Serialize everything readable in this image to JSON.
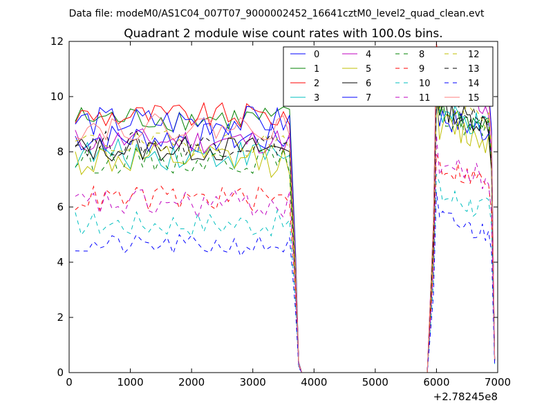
{
  "chart_data": {
    "type": "line",
    "suptitle": "Data file: modeM0/AS1C04_007T07_9000002452_16641cztM0_level2_quad_clean.evt",
    "title": "Quadrant 2 module wise count rates with 100.0s bins.",
    "xlabel": "",
    "ylabel": "",
    "x_offset_label": "+2.78245e8",
    "xlim": [
      0,
      7000
    ],
    "ylim": [
      0,
      12
    ],
    "x_ticks": [
      0,
      1000,
      2000,
      3000,
      4000,
      5000,
      6000,
      7000
    ],
    "y_ticks": [
      0,
      2,
      4,
      6,
      8,
      10,
      12
    ],
    "x_tick_labels": [
      "0",
      "1000",
      "2000",
      "3000",
      "4000",
      "5000",
      "6000",
      "7000"
    ],
    "y_tick_labels": [
      "0",
      "2",
      "4",
      "6",
      "8",
      "10",
      "12"
    ],
    "legend_position": "upper-right",
    "legend_columns": 4,
    "segments": {
      "seg1": {
        "start": 100,
        "end": 3650,
        "step": 100
      },
      "drop": [
        {
          "x": 3700,
          "factor": 0.45
        },
        {
          "x": 3750,
          "factor": 0.04
        },
        {
          "x": 3800,
          "factor": 0.0
        }
      ],
      "zero_range": [
        3800,
        5850
      ],
      "rise": [
        {
          "x": 5850,
          "factor": 0.0
        },
        {
          "x": 5950,
          "factor": 0.5
        }
      ],
      "seg2": {
        "start": 6000,
        "end": 6850,
        "step": 50
      },
      "end_fall": [
        {
          "x": 6900,
          "factor": 0.85
        },
        {
          "x": 6950,
          "factor": 0.05
        }
      ]
    },
    "series": [
      {
        "name": "0",
        "color": "#0000ff",
        "dash": "solid",
        "level1": 8.5,
        "amp1": 0.35,
        "level2": 9.3,
        "amp2": 0.35
      },
      {
        "name": "1",
        "color": "#008000",
        "dash": "solid",
        "level1": 9.2,
        "amp1": 0.3,
        "level2": 9.5,
        "amp2": 0.3
      },
      {
        "name": "2",
        "color": "#ff0000",
        "dash": "solid",
        "level1": 9.3,
        "amp1": 0.3,
        "level2": 10.8,
        "amp2": 0.4
      },
      {
        "name": "3",
        "color": "#00bfbf",
        "dash": "solid",
        "level1": 7.9,
        "amp1": 0.35,
        "level2": 9.4,
        "amp2": 0.35
      },
      {
        "name": "4",
        "color": "#bf00bf",
        "dash": "solid",
        "level1": 8.4,
        "amp1": 0.3,
        "level2": 10.2,
        "amp2": 0.35
      },
      {
        "name": "5",
        "color": "#bfbf00",
        "dash": "solid",
        "level1": 7.7,
        "amp1": 0.4,
        "level2": 9.0,
        "amp2": 0.4
      },
      {
        "name": "6",
        "color": "#000000",
        "dash": "solid",
        "level1": 8.1,
        "amp1": 0.3,
        "level2": 9.6,
        "amp2": 0.3
      },
      {
        "name": "7",
        "color": "#0000ff",
        "dash": "solid",
        "level1": 9.1,
        "amp1": 0.35,
        "level2": 10.9,
        "amp2": 0.4
      },
      {
        "name": "8",
        "color": "#008000",
        "dash": "dashed",
        "level1": 7.7,
        "amp1": 0.3,
        "level2": 9.3,
        "amp2": 0.3
      },
      {
        "name": "9",
        "color": "#ff0000",
        "dash": "dashed",
        "level1": 6.3,
        "amp1": 0.3,
        "level2": 7.5,
        "amp2": 0.3
      },
      {
        "name": "10",
        "color": "#00bfbf",
        "dash": "dashed",
        "level1": 5.4,
        "amp1": 0.3,
        "level2": 6.5,
        "amp2": 0.35
      },
      {
        "name": "11",
        "color": "#bf00bf",
        "dash": "dashed",
        "level1": 6.1,
        "amp1": 0.35,
        "level2": 7.6,
        "amp2": 0.35
      },
      {
        "name": "12",
        "color": "#bfbf00",
        "dash": "dashed",
        "level1": 8.3,
        "amp1": 0.3,
        "level2": 9.8,
        "amp2": 0.3
      },
      {
        "name": "13",
        "color": "#000000",
        "dash": "dashed",
        "level1": 8.3,
        "amp1": 0.3,
        "level2": 9.7,
        "amp2": 0.3
      },
      {
        "name": "14",
        "color": "#0000ff",
        "dash": "dashed",
        "level1": 4.6,
        "amp1": 0.25,
        "level2": 5.6,
        "amp2": 0.3
      },
      {
        "name": "15",
        "color": "#ff7f7f",
        "dash": "solid",
        "level1": 8.9,
        "amp1": 0.3,
        "level2": 11.0,
        "amp2": 0.4
      }
    ]
  }
}
